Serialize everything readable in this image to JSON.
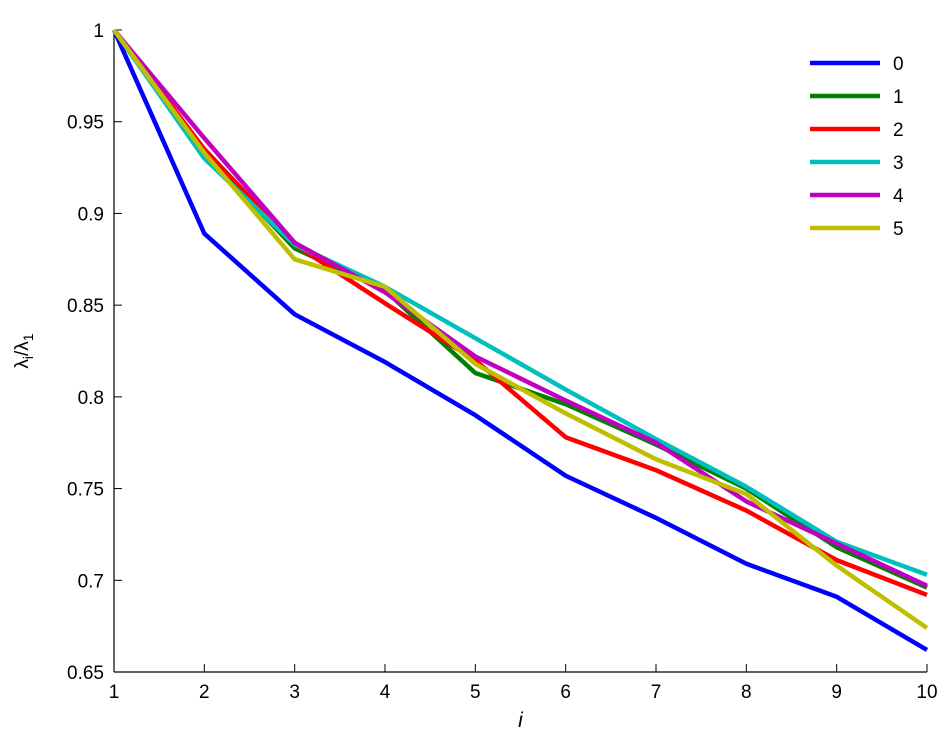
{
  "chart_data": {
    "type": "line",
    "title": "",
    "xlabel": "i",
    "ylabel": {
      "base": "λ",
      "sub_num": "i",
      "sep": "/",
      "den": "λ",
      "sub_den": "1"
    },
    "xlim": [
      1,
      10
    ],
    "ylim": [
      0.65,
      1
    ],
    "x": [
      1,
      2,
      3,
      4,
      5,
      6,
      7,
      8,
      9,
      10
    ],
    "x_ticks": [
      "1",
      "2",
      "3",
      "4",
      "5",
      "6",
      "7",
      "8",
      "9",
      "10"
    ],
    "y_ticks": [
      "0.65",
      "0.7",
      "0.75",
      "0.8",
      "0.85",
      "0.9",
      "0.95",
      "1"
    ],
    "grid": false,
    "legend_position": "top-right",
    "series": [
      {
        "name": "0",
        "color": "#0000ff",
        "values": [
          1.0,
          0.889,
          0.845,
          0.819,
          0.79,
          0.757,
          0.734,
          0.709,
          0.691,
          0.662
        ]
      },
      {
        "name": "1",
        "color": "#007f00",
        "values": [
          1.0,
          0.933,
          0.881,
          0.858,
          0.813,
          0.796,
          0.774,
          0.75,
          0.718,
          0.696
        ]
      },
      {
        "name": "2",
        "color": "#ff0000",
        "values": [
          1.0,
          0.935,
          0.883,
          0.851,
          0.82,
          0.778,
          0.76,
          0.738,
          0.711,
          0.692
        ]
      },
      {
        "name": "3",
        "color": "#00bfbf",
        "values": [
          1.0,
          0.93,
          0.883,
          0.86,
          0.832,
          0.804,
          0.777,
          0.751,
          0.721,
          0.703
        ]
      },
      {
        "name": "4",
        "color": "#bf00bf",
        "values": [
          1.0,
          0.941,
          0.884,
          0.857,
          0.822,
          0.798,
          0.775,
          0.743,
          0.72,
          0.697
        ]
      },
      {
        "name": "5",
        "color": "#bfbf00",
        "values": [
          1.0,
          0.933,
          0.875,
          0.86,
          0.818,
          0.791,
          0.766,
          0.747,
          0.708,
          0.674
        ]
      }
    ]
  }
}
